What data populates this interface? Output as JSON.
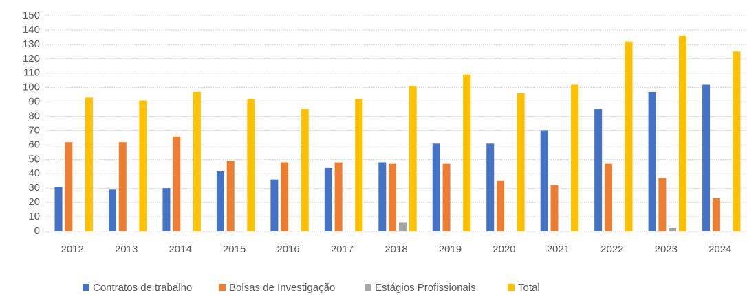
{
  "chart_data": {
    "type": "bar",
    "categories": [
      "2012",
      "2013",
      "2014",
      "2015",
      "2016",
      "2017",
      "2018",
      "2019",
      "2020",
      "2021",
      "2022",
      "2023",
      "2024"
    ],
    "series": [
      {
        "name": "Contratos de trabalho",
        "color": "#4472c4",
        "values": [
          31,
          29,
          30,
          42,
          36,
          44,
          48,
          61,
          61,
          70,
          85,
          97,
          102
        ]
      },
      {
        "name": "Bolsas de Investigação",
        "color": "#ed7d31",
        "values": [
          62,
          62,
          66,
          49,
          48,
          48,
          47,
          47,
          35,
          32,
          47,
          37,
          23
        ]
      },
      {
        "name": "Estágios Profissionais",
        "color": "#a5a5a5",
        "values": [
          0,
          0,
          0,
          0,
          0,
          0,
          6,
          0,
          0,
          0,
          0,
          2,
          0
        ]
      },
      {
        "name": "Total",
        "color": "#ffc000",
        "values": [
          93,
          91,
          97,
          92,
          85,
          92,
          101,
          109,
          96,
          102,
          132,
          136,
          125
        ]
      }
    ],
    "ylim": [
      0,
      150
    ],
    "yticks": [
      0,
      10,
      20,
      30,
      40,
      50,
      60,
      70,
      80,
      90,
      100,
      110,
      120,
      130,
      140,
      150
    ],
    "grid": true,
    "legend": "bottom"
  }
}
